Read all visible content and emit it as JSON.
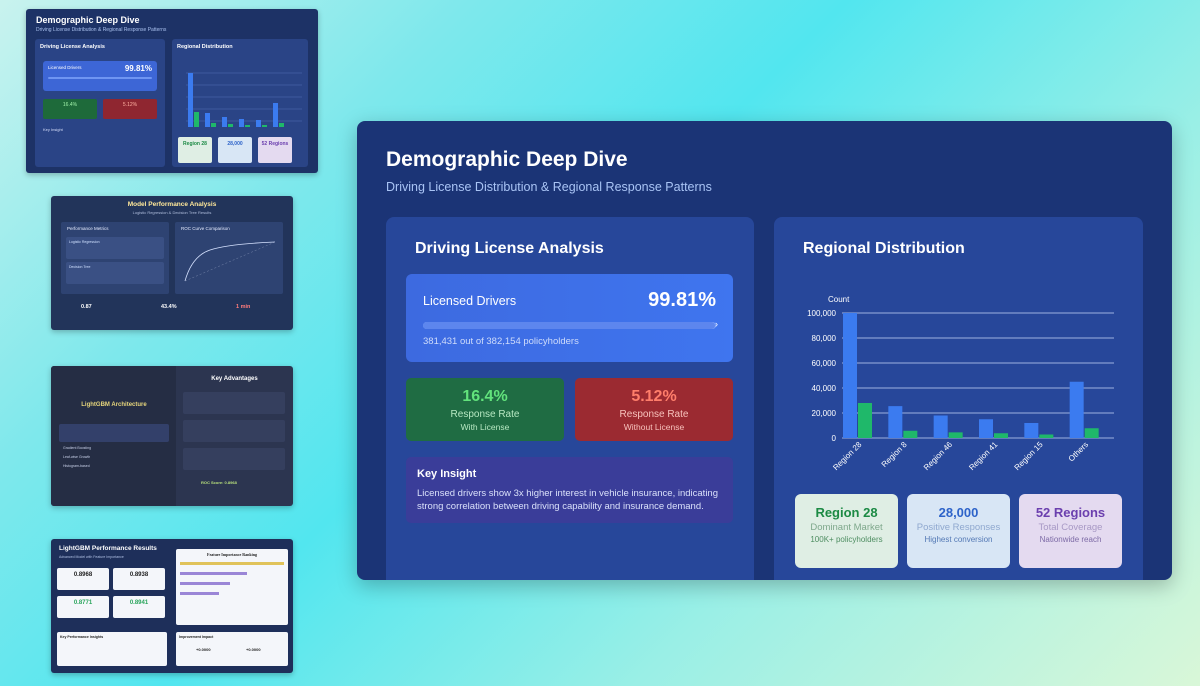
{
  "thumbnails": {
    "t1": {
      "title": "Demographic Deep Dive",
      "subtitle": "Driving License Distribution & Regional Response Patterns",
      "left_heading": "Driving License Analysis",
      "right_heading": "Regional Distribution",
      "licensed_label": "Licensed Drivers",
      "licensed_value": "99.81%",
      "green_value": "16.4%",
      "red_value": "5.12%",
      "insight_heading": "Key Insight",
      "card1": "Region 28",
      "card2": "28,000",
      "card3": "52 Regions"
    },
    "t2": {
      "title": "Model Performance Analysis",
      "subtitle": "Logistic Regression & Decision Tree Results",
      "left_heading": "Performance Metrics",
      "right_heading": "ROC Curve Comparison",
      "row1": "Logistic Regression",
      "row2": "Decision Tree",
      "stat1": "0.87",
      "stat2": "43.4%",
      "stat3": "1 min"
    },
    "t3": {
      "brand": "LightGBM Architecture",
      "heading": "Key Advantages",
      "features": [
        "Gradient Boosting",
        "Leaf-wise Growth",
        "Histogram-based"
      ],
      "footer": "ROC Score: 0.8968"
    },
    "t4": {
      "title": "LightGBM Performance Results",
      "subtitle": "Advanced Model with Feature Importance",
      "box_title": "Feature Importance Ranking",
      "values": [
        "0.8968",
        "0.8938",
        "0.8771",
        "0.8941"
      ],
      "insights_title": "Key Performance Insights",
      "improvement_title": "Improvement Impact",
      "impr1": "+0.0000",
      "impr2": "+0.0000"
    }
  },
  "main": {
    "title": "Demographic Deep Dive",
    "subtitle": "Driving License Distribution & Regional Response Patterns",
    "left_panel": {
      "heading": "Driving License Analysis",
      "licensed_label": "Licensed Drivers",
      "licensed_value": "99.81%",
      "licensed_fraction": 0.9981,
      "licensed_count_text": "381,431 out of 382,154 policyholders",
      "green_stat": {
        "value": "16.4%",
        "line1": "Response Rate",
        "line2": "With License"
      },
      "red_stat": {
        "value": "5.12%",
        "line1": "Response Rate",
        "line2": "Without License"
      },
      "insight_heading": "Key Insight",
      "insight_text": "Licensed drivers show 3x higher interest in vehicle insurance, indicating strong correlation between driving capability and insurance demand."
    },
    "right_panel": {
      "heading": "Regional Distribution",
      "cards": [
        {
          "value": "Region 28",
          "line1": "Dominant Market",
          "line2": "100K+ policyholders"
        },
        {
          "value": "28,000",
          "line1": "Positive Responses",
          "line2": "Highest conversion"
        },
        {
          "value": "52 Regions",
          "line1": "Total Coverage",
          "line2": "Nationwide reach"
        }
      ]
    },
    "colors": {
      "bar_total": "#3b7bf0",
      "bar_positive": "#1fb86a",
      "green_stat": "#62e37c",
      "red_stat": "#ff7e6b"
    }
  },
  "chart_data": {
    "type": "bar",
    "ylabel": "Count",
    "categories": [
      "Region 28",
      "Region 8",
      "Region 46",
      "Region 41",
      "Region 15",
      "Others"
    ],
    "series": [
      {
        "values": [
          100000,
          25500,
          18000,
          15000,
          12000,
          45000
        ]
      },
      {
        "values": [
          28000,
          5800,
          4500,
          3800,
          2800,
          7800
        ]
      }
    ],
    "ylim": [
      0,
      100000
    ],
    "yticks": [
      "0",
      "20,000",
      "40,000",
      "60,000",
      "80,000",
      "100,000"
    ],
    "grid": true
  }
}
